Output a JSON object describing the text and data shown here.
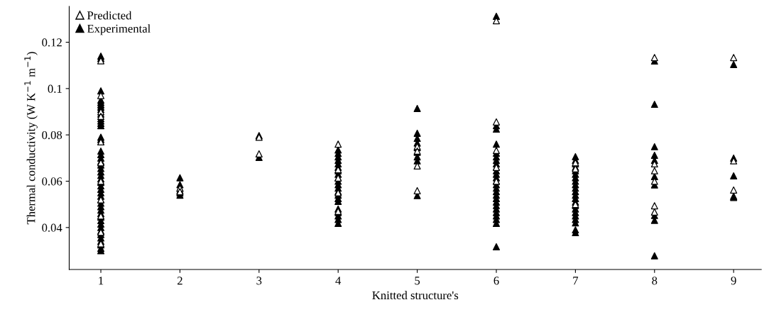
{
  "chart_data": {
    "type": "scatter",
    "xlabel": "Knitted structure's",
    "ylabel": "Thermal conductivity (W K$^{−1}$ m$^{−1}$)",
    "xlim": [
      0.6,
      9.35
    ],
    "xticks": [
      1,
      2,
      3,
      4,
      5,
      6,
      7,
      8,
      9
    ],
    "ylim": [
      0.0219,
      0.1355
    ],
    "yticks": [
      0.04,
      0.06,
      0.08,
      0.1,
      0.12
    ],
    "grid": false,
    "legend": "top left",
    "marker": "triangle",
    "series": [
      {
        "name": "Predicted",
        "color": "#ffffff",
        "x": [
          1,
          1,
          1,
          1,
          1,
          1,
          1,
          1,
          1,
          1,
          1,
          2,
          2,
          3,
          3,
          4,
          4,
          4,
          4,
          4,
          5,
          5,
          5,
          5,
          6,
          6,
          6,
          6,
          6,
          7,
          7,
          7,
          8,
          8,
          8,
          8,
          8,
          8,
          9,
          9,
          9
        ],
        "values": [
          0.112,
          0.097,
          0.09,
          0.088,
          0.077,
          0.068,
          0.06,
          0.052,
          0.045,
          0.038,
          0.033,
          0.057,
          0.0555,
          0.079,
          0.0718,
          0.076,
          0.065,
          0.0614,
          0.055,
          0.047,
          0.075,
          0.073,
          0.0666,
          0.0559,
          0.1293,
          0.0856,
          0.0733,
          0.066,
          0.06,
          0.0654,
          0.068,
          0.05,
          0.1134,
          0.0675,
          0.0645,
          0.06,
          0.0494,
          0.0467,
          0.1134,
          0.0688,
          0.0562
        ]
      },
      {
        "name": "Experimental",
        "color": "#000000",
        "x": [
          1,
          1,
          1,
          1,
          1,
          1,
          1,
          1,
          1,
          1,
          1,
          1,
          1,
          1,
          1,
          1,
          1,
          1,
          1,
          1,
          1,
          1,
          1,
          1,
          1,
          1,
          1,
          1,
          1,
          1,
          1,
          1,
          1,
          1,
          1,
          1,
          1,
          1,
          1,
          1,
          1,
          1,
          1,
          1,
          1,
          2,
          2,
          2,
          2,
          2,
          2,
          3,
          3,
          4,
          4,
          4,
          4,
          4,
          4,
          4,
          4,
          4,
          4,
          4,
          4,
          4,
          4,
          4,
          4,
          4,
          4,
          4,
          4,
          4,
          5,
          5,
          5,
          5,
          5,
          5,
          5,
          5,
          5,
          6,
          6,
          6,
          6,
          6,
          6,
          6,
          6,
          6,
          6,
          6,
          6,
          6,
          6,
          6,
          6,
          6,
          6,
          6,
          6,
          6,
          6,
          6,
          6,
          6,
          6,
          7,
          7,
          7,
          7,
          7,
          7,
          7,
          7,
          7,
          7,
          7,
          7,
          7,
          7,
          7,
          7,
          7,
          7,
          7,
          7,
          7,
          7,
          8,
          8,
          8,
          8,
          8,
          8,
          8,
          8,
          8,
          8,
          9,
          9,
          9,
          9,
          9
        ],
        "values": [
          0.114,
          0.113,
          0.099,
          0.095,
          0.094,
          0.093,
          0.092,
          0.091,
          0.089,
          0.087,
          0.086,
          0.085,
          0.084,
          0.079,
          0.078,
          0.073,
          0.0715,
          0.07,
          0.0685,
          0.067,
          0.0655,
          0.064,
          0.0625,
          0.061,
          0.0595,
          0.058,
          0.0565,
          0.055,
          0.0535,
          0.052,
          0.0505,
          0.049,
          0.0475,
          0.046,
          0.0445,
          0.043,
          0.0415,
          0.04,
          0.0385,
          0.037,
          0.0355,
          0.034,
          0.0325,
          0.031,
          0.03,
          0.0615,
          0.0585,
          0.057,
          0.056,
          0.055,
          0.054,
          0.0797,
          0.0703,
          0.0735,
          0.072,
          0.0705,
          0.069,
          0.0675,
          0.066,
          0.0645,
          0.063,
          0.0615,
          0.06,
          0.0585,
          0.057,
          0.0555,
          0.054,
          0.0525,
          0.0513,
          0.048,
          0.0465,
          0.045,
          0.0435,
          0.0418,
          0.0914,
          0.0807,
          0.0785,
          0.0765,
          0.0745,
          0.0725,
          0.0705,
          0.0688,
          0.0538,
          0.1312,
          0.084,
          0.0825,
          0.076,
          0.0721,
          0.0705,
          0.069,
          0.0675,
          0.066,
          0.0645,
          0.063,
          0.0615,
          0.06,
          0.0585,
          0.057,
          0.0555,
          0.054,
          0.0525,
          0.051,
          0.0495,
          0.048,
          0.0465,
          0.045,
          0.0435,
          0.0418,
          0.0317,
          0.0706,
          0.069,
          0.0675,
          0.066,
          0.0645,
          0.063,
          0.0615,
          0.06,
          0.0585,
          0.057,
          0.0555,
          0.054,
          0.0525,
          0.051,
          0.0495,
          0.048,
          0.0465,
          0.045,
          0.0435,
          0.042,
          0.039,
          0.0378,
          0.1119,
          0.0932,
          0.0749,
          0.0712,
          0.069,
          0.062,
          0.0584,
          0.0452,
          0.0431,
          0.0278,
          0.1104,
          0.07,
          0.0623,
          0.0535,
          0.053
        ]
      }
    ]
  }
}
